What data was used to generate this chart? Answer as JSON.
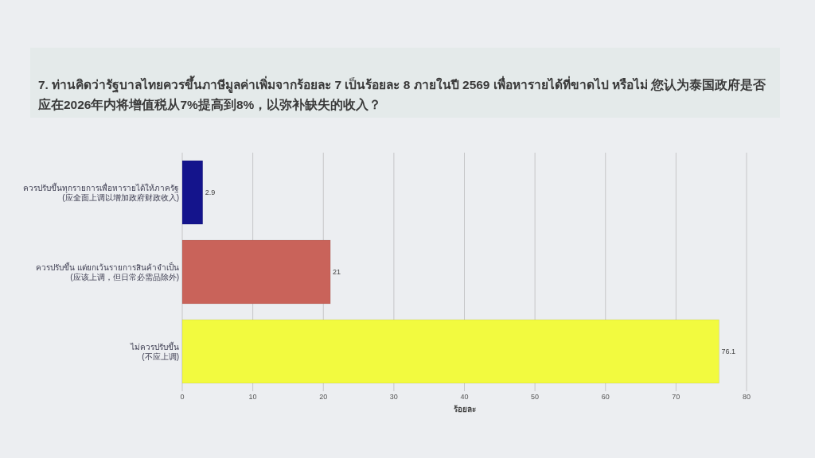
{
  "chart_data": {
    "type": "bar",
    "orientation": "horizontal",
    "title": "7. ท่านคิดว่ารัฐบาลไทยควรขึ้นภาษีมูลค่าเพิ่มจากร้อยละ 7 เป็นร้อยละ 8 ภายในปี 2569 เพื่อหารายได้ที่ขาดไป หรือไม่   您认为泰国政府是否应在2026年内将增值税从7%提高到8%，以弥补缺失的收入？",
    "xlabel": "ร้อยละ",
    "categories": [
      "ควรปรับขึ้นทุกรายการเพื่อหารายได้ให้ภาครัฐ\n(应全面上调以增加政府财政收入)",
      "ควรปรับขึ้น แต่ยกเว้นรายการสินค้าจำเป็น\n(应该上调，但日常必需品除外)",
      "ไม่ควรปรับขึ้น\n(不应上调)"
    ],
    "values": [
      2.9,
      21,
      76.1
    ],
    "colors": [
      "#14148c",
      "#c9635a",
      "#f2fa3f"
    ],
    "xlim": [
      0,
      80
    ],
    "xticks": [
      0,
      10,
      20,
      30,
      40,
      50,
      60,
      70,
      80
    ],
    "grid": "x",
    "data_labels": true
  }
}
